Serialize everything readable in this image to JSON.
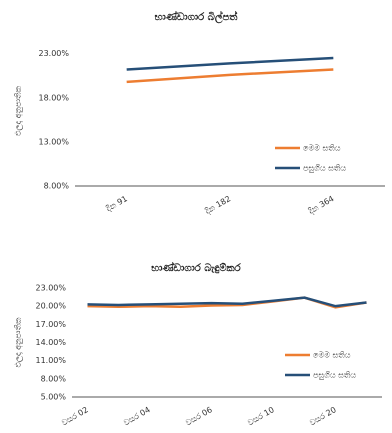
{
  "chart_data": [
    {
      "type": "line",
      "title": "භාණ්ඩාගාර බිල්පත්",
      "y_label": "ඵලදා අනුපාතික",
      "categories": [
        "දින 91",
        "දින 182",
        "දින 364"
      ],
      "series": [
        {
          "name": "මෙම සතිය",
          "color": "#ed7d31",
          "values": [
            19.8,
            20.6,
            21.2
          ]
        },
        {
          "name": "පසුගිය සතිය",
          "color": "#264f78",
          "values": [
            21.2,
            21.9,
            22.5
          ]
        }
      ],
      "ylim": [
        8,
        25
      ],
      "yticks": [
        {
          "value": 8,
          "label": "8.00%"
        },
        {
          "value": 13,
          "label": "13.00%"
        },
        {
          "value": 18,
          "label": "18.00%"
        },
        {
          "value": 23,
          "label": "23.00%"
        }
      ],
      "legend": "lower right"
    },
    {
      "type": "line",
      "title": "භාණ්ඩාගාර බැඳුම්කර",
      "y_label": "ඵලදා අනුපාතික",
      "categories": [
        "වසර 02",
        null,
        "වසර 04",
        null,
        "වසර 06",
        null,
        "වසර 10",
        null,
        "වසර 20",
        null
      ],
      "series": [
        {
          "name": "මෙම සතිය",
          "color": "#ed7d31",
          "values": [
            20.0,
            19.9,
            20.0,
            19.9,
            20.1,
            20.2,
            20.8,
            21.4,
            19.8,
            20.6
          ]
        },
        {
          "name": "පසුගිය සතිය",
          "color": "#264f78",
          "values": [
            20.3,
            20.2,
            20.3,
            20.4,
            20.5,
            20.4,
            20.9,
            21.4,
            20.0,
            20.6
          ]
        }
      ],
      "ylim": [
        5,
        23
      ],
      "yticks": [
        {
          "value": 5,
          "label": "5.00%"
        },
        {
          "value": 8,
          "label": "8.00%"
        },
        {
          "value": 11,
          "label": "11.00%"
        },
        {
          "value": 14,
          "label": "14.00%"
        },
        {
          "value": 17,
          "label": "17.00%"
        },
        {
          "value": 20,
          "label": "20.00%"
        },
        {
          "value": 23,
          "label": "23.00%"
        }
      ],
      "legend": "lower right"
    }
  ]
}
